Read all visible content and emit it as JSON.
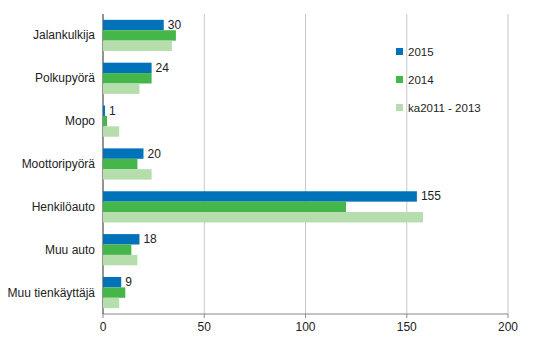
{
  "chart_data": {
    "type": "bar",
    "orientation": "horizontal",
    "categories": [
      "Jalankulkija",
      "Polkupyörä",
      "Mopo",
      "Moottoripyörä",
      "Henkilöauto",
      "Muu auto",
      "Muu tienkäyttäjä"
    ],
    "series": [
      {
        "name": "2015",
        "color": "#0072B9",
        "values": [
          30,
          24,
          1,
          20,
          155,
          18,
          9
        ],
        "data_labels": true
      },
      {
        "name": "2014",
        "color": "#45B649",
        "values": [
          36,
          24,
          2,
          17,
          120,
          14,
          11
        ]
      },
      {
        "name": "ka2011 - 2013",
        "color": "#B5DEAC",
        "values": [
          34,
          18,
          8,
          24,
          158,
          17,
          8
        ]
      }
    ],
    "xlim": [
      0,
      200
    ],
    "xticks": [
      0,
      50,
      100,
      150,
      200
    ],
    "grid": true,
    "legend": "top-right"
  }
}
